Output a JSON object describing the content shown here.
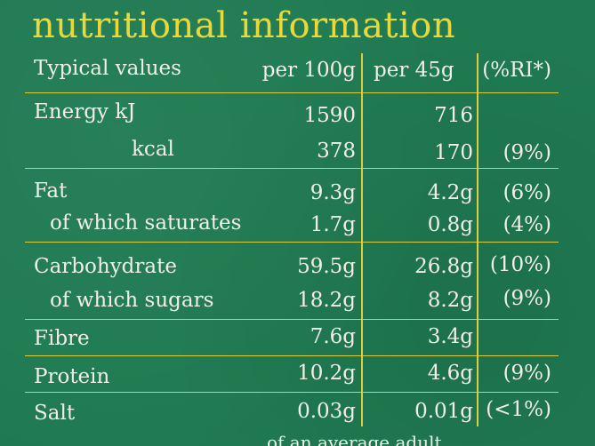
{
  "title": "nutritional information",
  "header": {
    "label": "Typical values",
    "per100": "per 100g",
    "per45": "per 45g",
    "ri": "(%RI*)"
  },
  "rows": [
    {
      "label": "Energy kJ",
      "per100": "1590",
      "per45": "716",
      "ri": ""
    },
    {
      "label": "kcal",
      "per100": "378",
      "per45": "170",
      "ri": "(9%)"
    },
    {
      "label": "Fat",
      "per100": "9.3g",
      "per45": "4.2g",
      "ri": "(6%)"
    },
    {
      "label": "of which saturates",
      "per100": "1.7g",
      "per45": "0.8g",
      "ri": "(4%)"
    },
    {
      "label": "Carbohydrate",
      "per100": "59.5g",
      "per45": "26.8g",
      "ri": "(10%)"
    },
    {
      "label": "of which sugars",
      "per100": "18.2g",
      "per45": "8.2g",
      "ri": "(9%)"
    },
    {
      "label": "Fibre",
      "per100": "7.6g",
      "per45": "3.4g",
      "ri": ""
    },
    {
      "label": "Protein",
      "per100": "10.2g",
      "per45": "4.6g",
      "ri": "(9%)"
    },
    {
      "label": "Salt",
      "per100": "0.03g",
      "per45": "0.01g",
      "ri": "(<1%)"
    }
  ],
  "footer": "of an average adult"
}
